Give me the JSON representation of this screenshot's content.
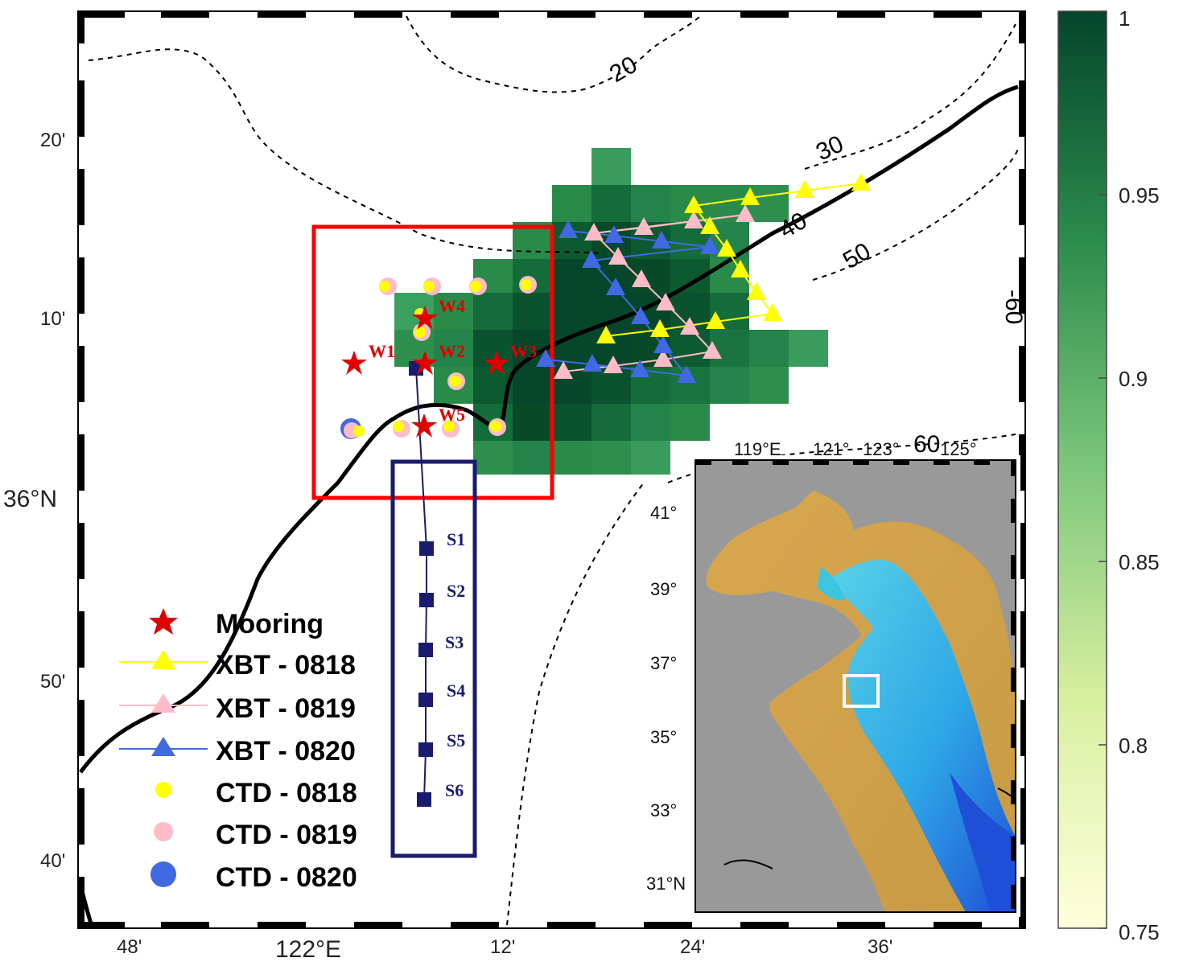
{
  "map": {
    "lat_ticks": [
      "20'",
      "10'",
      "36°N",
      "50'",
      "40'"
    ],
    "lon_ticks": [
      "48'",
      "122°E",
      "12'",
      "24'",
      "36'"
    ],
    "contour_labels": [
      "20",
      "30",
      "40",
      "50",
      "60"
    ],
    "inset_contour_label": "60",
    "right_edge_label": "-60",
    "moorings": [
      "W1",
      "W2",
      "W3",
      "W4",
      "W5"
    ],
    "section_stations": [
      "S1",
      "S2",
      "S3",
      "S4",
      "S5",
      "S6"
    ],
    "bold_contour": "40"
  },
  "legend": {
    "items": [
      {
        "label": "Mooring",
        "symbol": "star",
        "color": "#e00000"
      },
      {
        "label": "XBT - 0818",
        "symbol": "line-triangle",
        "color": "#ffff00"
      },
      {
        "label": "XBT - 0819",
        "symbol": "line-triangle",
        "color": "#ffbcc8"
      },
      {
        "label": "XBT - 0820",
        "symbol": "line-triangle",
        "color": "#4169e1"
      },
      {
        "label": "CTD - 0818",
        "symbol": "dot",
        "color": "#ffff00"
      },
      {
        "label": "CTD - 0819",
        "symbol": "dot",
        "color": "#ffbcc8"
      },
      {
        "label": "CTD - 0820",
        "symbol": "dot",
        "color": "#4169e1"
      }
    ]
  },
  "inset": {
    "lon_ticks": [
      "119°E",
      "121°",
      "123°",
      "125°"
    ],
    "lat_ticks": [
      "41°",
      "39°",
      "37°",
      "35°",
      "33°",
      "31°N"
    ]
  },
  "colorbar": {
    "ticks": [
      "1",
      "0.95",
      "0.9",
      "0.85",
      "0.8",
      "0.75"
    ],
    "min": 0.75,
    "max": 1,
    "colors": [
      "#ffffe0",
      "#d9f0a3",
      "#78c679",
      "#238443",
      "#004529"
    ]
  }
}
